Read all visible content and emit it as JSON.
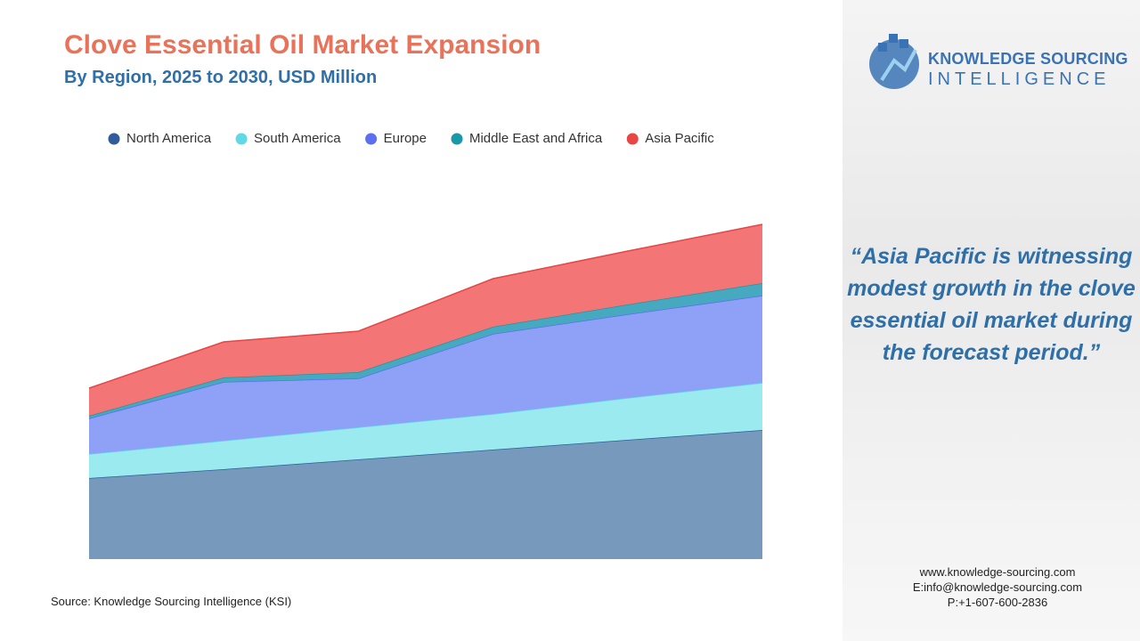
{
  "chart_data": {
    "type": "stacked-area",
    "title": "Clove Essential Oil Market Expansion",
    "subtitle": "By Region, 2025 to 2030, USD Million",
    "categories": [
      null,
      null,
      null,
      null,
      null,
      null
    ],
    "ylim": [
      0,
      376
    ],
    "series": [
      {
        "name": "North America",
        "color": "#2f5d9a",
        "fill": "#7799bb",
        "values": [
          91,
          101,
          112,
          123,
          134,
          145
        ]
      },
      {
        "name": "South America",
        "color": "#5fd9e6",
        "fill": "#9aeaf0",
        "values": [
          27,
          32,
          36,
          40,
          47,
          53
        ]
      },
      {
        "name": "Europe",
        "color": "#5b6ff0",
        "fill": "#8fa0f7",
        "values": [
          40,
          66,
          55,
          90,
          94,
          98
        ]
      },
      {
        "name": "Middle East and Africa",
        "color": "#1a98a8",
        "fill": "#47a9bf",
        "values": [
          3,
          5,
          7,
          8,
          11,
          14
        ]
      },
      {
        "name": "Asia Pacific",
        "color": "#e84545",
        "fill": "#f47575",
        "values": [
          31,
          40,
          46,
          54,
          60,
          66
        ]
      }
    ]
  },
  "source": "Source: Knowledge Sourcing Intelligence (KSI)",
  "brand": {
    "line1": "KNOWLEDGE SOURCING",
    "line2": "INTELLIGENCE"
  },
  "quote": "“Asia Pacific is witnessing modest growth in the clove essential oil market during the forecast period.”",
  "contact": [
    "www.knowledge-sourcing.com",
    "E:info@knowledge-sourcing.com",
    "P:+1-607-600-2836"
  ]
}
